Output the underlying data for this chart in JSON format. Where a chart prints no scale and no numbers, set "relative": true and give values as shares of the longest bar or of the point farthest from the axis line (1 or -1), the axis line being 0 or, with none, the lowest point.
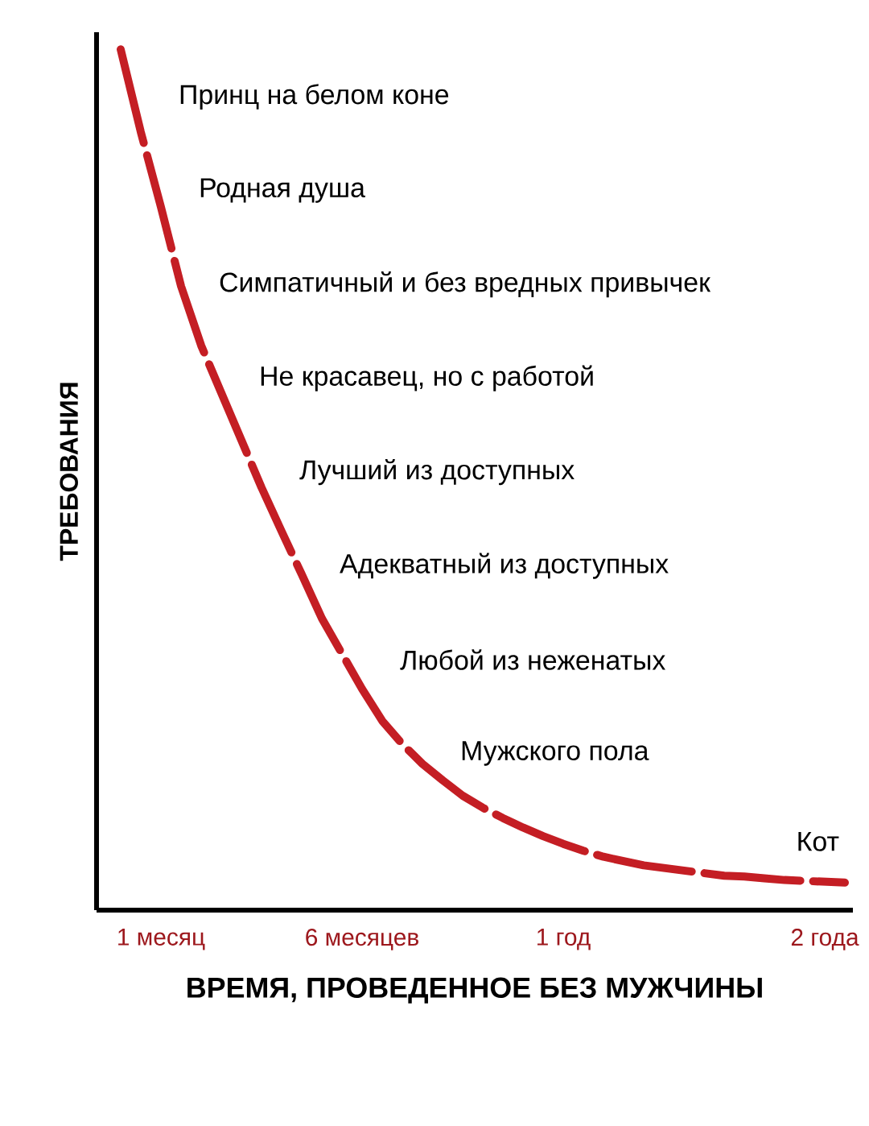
{
  "chart_data": {
    "type": "line",
    "relative": true,
    "xlabel": "ВРЕМЯ, ПРОВЕДЕННОЕ БЕЗ МУЖЧИНЫ",
    "ylabel": "ТРЕБОВАНИЯ",
    "categories": [
      null,
      null,
      "1 месяц",
      null,
      null,
      null,
      null,
      null,
      null,
      null,
      null,
      null,
      "6 месяцев",
      null,
      null,
      null,
      null,
      null,
      null,
      null,
      null,
      null,
      "1 год",
      null,
      null,
      null,
      null,
      null,
      null,
      null,
      null,
      null,
      null,
      null,
      null,
      "2 года",
      null
    ],
    "values": [
      1.0,
      0.904,
      0.817,
      0.725,
      0.656,
      0.601,
      0.546,
      0.491,
      0.44,
      0.39,
      0.339,
      0.298,
      0.257,
      0.22,
      0.193,
      0.17,
      0.151,
      0.133,
      0.119,
      0.107,
      0.096,
      0.086,
      0.077,
      0.069,
      0.062,
      0.057,
      0.052,
      0.049,
      0.046,
      0.043,
      0.04,
      0.039,
      0.037,
      0.035,
      0.034,
      0.033,
      0.032
    ],
    "color": "#c41e24",
    "line_style": "dashed",
    "annotations": [
      "Принц на белом коне",
      "Родная душа",
      "Симпатичный и без вредных привычек",
      "Не красавец, но с работой",
      "Лучший из доступных",
      "Адекватный из доступных",
      "Любой из неженатых",
      "Мужского пола",
      "Кот"
    ]
  }
}
